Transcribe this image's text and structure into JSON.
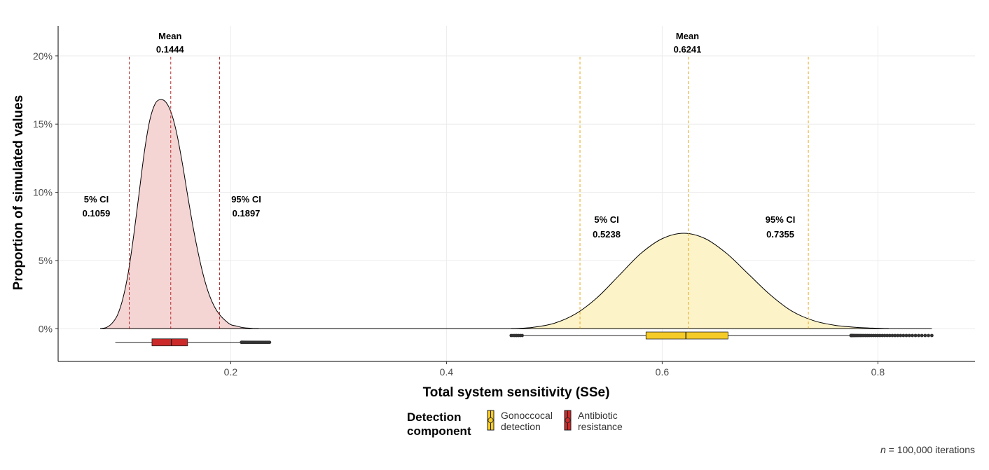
{
  "chart_data": {
    "type": "area",
    "xlabel": "Total system sensitivity (SSe)",
    "ylabel": "Proportion of simulated values",
    "xlim": [
      0.04,
      0.89
    ],
    "ylim": [
      -0.024,
      0.222
    ],
    "x_ticks": [
      0.2,
      0.4,
      0.6,
      0.8
    ],
    "x_tick_labels": [
      "0.2",
      "0.4",
      "0.6",
      "0.8"
    ],
    "y_ticks": [
      0,
      0.05,
      0.1,
      0.15,
      0.2
    ],
    "y_tick_labels": [
      "0%",
      "5%",
      "10%",
      "15%",
      "20%"
    ],
    "grid": true,
    "baseline": {
      "x_from": 0.079,
      "x_to": 0.85
    },
    "series": [
      {
        "key": "antibiotic",
        "fill": "#f5d4d4",
        "line_color": "#b52a2a",
        "box_color": "#cc2a2a",
        "density": {
          "x": [
            0.079,
            0.085,
            0.09,
            0.095,
            0.1,
            0.105,
            0.11,
            0.115,
            0.12,
            0.125,
            0.13,
            0.135,
            0.14,
            0.145,
            0.15,
            0.155,
            0.16,
            0.165,
            0.17,
            0.175,
            0.18,
            0.185,
            0.19,
            0.195,
            0.2,
            0.205,
            0.21,
            0.215,
            0.22,
            0.226
          ],
          "y": [
            0.0,
            0.001,
            0.004,
            0.01,
            0.022,
            0.041,
            0.068,
            0.099,
            0.13,
            0.153,
            0.165,
            0.168,
            0.166,
            0.158,
            0.143,
            0.122,
            0.098,
            0.075,
            0.055,
            0.038,
            0.025,
            0.016,
            0.01,
            0.006,
            0.003,
            0.002,
            0.001,
            0.0005,
            0.0002,
            0.0
          ]
        },
        "mean": 0.1444,
        "ci5": 0.1059,
        "ci95": 0.1897,
        "box": {
          "y": -0.01,
          "whisker_low": 0.093,
          "q1": 0.127,
          "median": 0.145,
          "q3": 0.16,
          "whisker_high": 0.21,
          "outliers_from": 0.21,
          "outliers_to": 0.236
        },
        "labels": {
          "mean_title": "Mean",
          "mean_value": "0.1444",
          "ci5_title": "5% CI",
          "ci5_value": "0.1059",
          "ci95_title": "95% CI",
          "ci95_value": "0.1897"
        }
      },
      {
        "key": "gonococcal",
        "fill": "#fdf3c8",
        "line_color": "#e8a820",
        "box_color": "#f5cb28",
        "density": {
          "x": [
            0.46,
            0.48,
            0.5,
            0.52,
            0.54,
            0.56,
            0.58,
            0.6,
            0.62,
            0.64,
            0.66,
            0.68,
            0.7,
            0.72,
            0.74,
            0.76,
            0.78,
            0.8,
            0.81
          ],
          "y": [
            0.0,
            0.001,
            0.004,
            0.011,
            0.023,
            0.039,
            0.055,
            0.066,
            0.07,
            0.066,
            0.055,
            0.04,
            0.025,
            0.013,
            0.006,
            0.0025,
            0.001,
            0.0003,
            0.0
          ]
        },
        "mean": 0.6241,
        "ci5": 0.5238,
        "ci95": 0.7355,
        "box": {
          "y": -0.005,
          "whisker_low": 0.47,
          "q1": 0.585,
          "median": 0.622,
          "q3": 0.661,
          "whisker_high": 0.775,
          "outliers_from": 0.775,
          "outliers_to": 0.85
        },
        "labels": {
          "mean_title": "Mean",
          "mean_value": "0.6241",
          "ci5_title": "5% CI",
          "ci5_value": "0.5238",
          "ci95_title": "95% CI",
          "ci95_value": "0.7355"
        }
      }
    ],
    "legend": {
      "title_line1": "Detection",
      "title_line2": "component",
      "placement": "bottom",
      "items": [
        {
          "key": "gonococcal",
          "line1": "Gonoccocal",
          "line2": "detection",
          "color": "#f5cb28"
        },
        {
          "key": "antibiotic",
          "line1": "Antibiotic",
          "line2": "resistance",
          "color": "#cc2a2a"
        }
      ]
    },
    "caption_n": "n",
    "caption_rest": " = 100,000 iterations"
  }
}
